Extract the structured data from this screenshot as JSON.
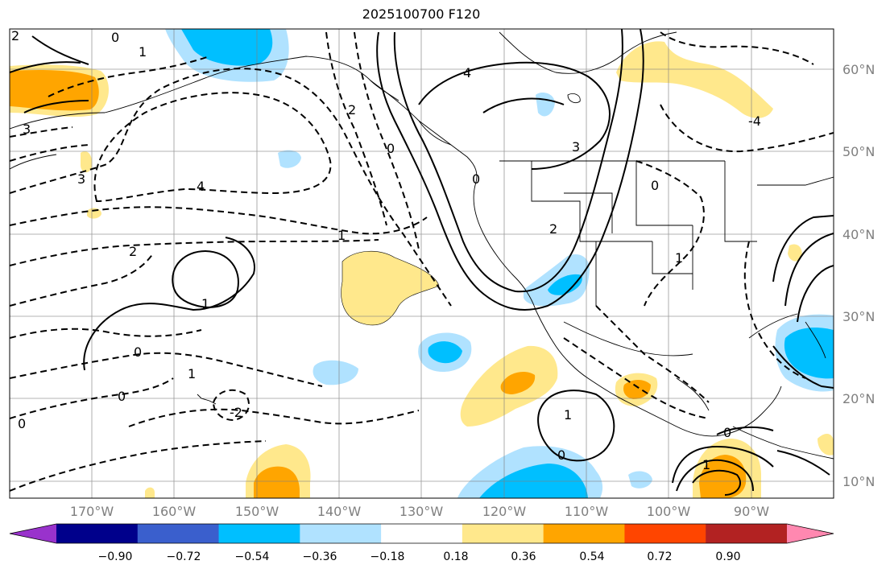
{
  "title": "2025100700 F120",
  "map": {
    "projection": "PlateCarree",
    "lon_range": [
      -180,
      -80
    ],
    "lat_range": [
      8,
      65
    ],
    "field": "shaded anomaly with black contours (solid positive, dashed negative)",
    "lon_labels": [
      "170°W",
      "160°W",
      "150°W",
      "140°W",
      "130°W",
      "120°W",
      "110°W",
      "100°W",
      "90°W"
    ],
    "lat_labels": [
      "60°N",
      "50°N",
      "40°N",
      "30°N",
      "20°N",
      "10°N"
    ],
    "contour_labels": [
      "2",
      "0",
      "1",
      "3",
      "3",
      "4",
      "2",
      "1",
      "0",
      "0",
      "3",
      "2",
      "-4",
      "1",
      "2",
      "1",
      "0",
      "1",
      "0",
      "-2",
      "0",
      "1",
      "0",
      "0",
      "0",
      "1",
      "4"
    ],
    "gridline_color": "#808080",
    "coastline_color": "#000000"
  },
  "colorbar": {
    "levels": [
      "−0.90",
      "−0.72",
      "−0.54",
      "−0.36",
      "−0.18",
      "0.18",
      "0.36",
      "0.54",
      "0.72",
      "0.90"
    ],
    "colors": [
      "#9932cc",
      "#00008b",
      "#3a5fcd",
      "#00bfff",
      "#b0e2ff",
      "#ffffff",
      "#ffe88c",
      "#ffa500",
      "#ff4500",
      "#b22222",
      "#ff88b0"
    ],
    "extend": "both"
  }
}
